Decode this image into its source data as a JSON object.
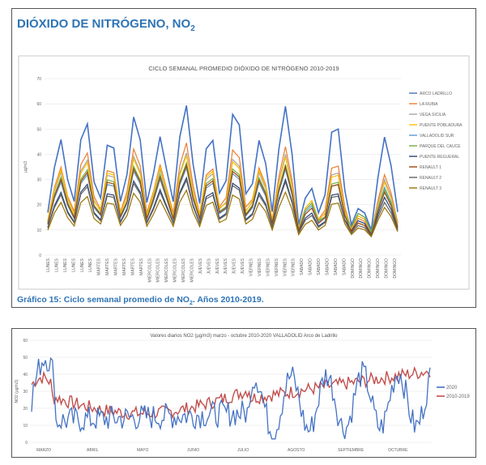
{
  "header": {
    "title": "DIÓXIDO DE NITRÓGENO, NO",
    "title_sub": "2"
  },
  "caption": {
    "text": "Gráfico 15: Ciclo semanal promedio de NO",
    "sub": "2",
    "suffix": ". Años 2010-2019."
  },
  "chart_data": [
    {
      "type": "line",
      "title": "CICLO SEMANAL PROMEDIO DIÓXIDO DE NITRÓGENO 2010-2019",
      "ylabel": "µg/m3",
      "ylim": [
        0,
        70
      ],
      "yticks": [
        0,
        10,
        20,
        30,
        40,
        50,
        60,
        70
      ],
      "n_points": 54,
      "x_tick_labels": [
        "LUNES",
        "LUNES",
        "LUNES",
        "LUNES",
        "LUNES",
        "LUNES",
        "MARTES",
        "MARTES",
        "MARTES",
        "MARTES",
        "MARTES",
        "MARTES",
        "MIERCOLES",
        "MIERCOLES",
        "MIERCOLES",
        "MIERCOLES",
        "MIERCOLES",
        "MIERCOLES",
        "JUEVES",
        "JUEVES",
        "JUEVES",
        "JUEVES",
        "JUEVES",
        "JUEVES",
        "VIERNES",
        "VIERNES",
        "VIERNES",
        "VIERNES",
        "VIERNES",
        "VIERNES",
        "SABADO",
        "SABADO",
        "SABADO",
        "SABADO",
        "SABADO",
        "SABADO",
        "DOMINGO",
        "DOMINGO",
        "DOMINGO",
        "DOMINGO",
        "DOMINGO",
        "DOMINGO"
      ],
      "series": [
        {
          "name": "ARCO LADRILLO",
          "color": "#4472c4",
          "peaks": [
            46,
            54,
            47,
            56,
            47,
            60,
            48,
            59,
            46,
            59,
            27,
            54,
            19,
            47
          ]
        },
        {
          "name": "LA RUBIA",
          "color": "#ed7d31",
          "peaks": [
            35,
            42,
            36,
            43,
            36,
            45,
            36,
            44,
            35,
            43,
            22,
            38,
            15,
            32
          ]
        },
        {
          "name": "VEGA SICILIA",
          "color": "#a5a5a5",
          "peaks": [
            33,
            39,
            34,
            40,
            34,
            41,
            34,
            40,
            33,
            40,
            21,
            35,
            16,
            30
          ]
        },
        {
          "name": "PUENTE POBLADURA",
          "color": "#ffc000",
          "peaks": [
            34,
            38,
            35,
            39,
            35,
            40,
            35,
            39,
            34,
            39,
            22,
            34,
            16,
            29
          ]
        },
        {
          "name": "VALLADOLID SUR",
          "color": "#5b9bd5",
          "peaks": [
            29,
            33,
            30,
            34,
            30,
            35,
            30,
            34,
            29,
            34,
            20,
            30,
            17,
            27
          ]
        },
        {
          "name": "PARQUE DEL CAUCE",
          "color": "#70ad47",
          "peaks": [
            31,
            35,
            32,
            36,
            32,
            37,
            32,
            36,
            31,
            36,
            21,
            31,
            17,
            26
          ]
        },
        {
          "name": "PUENTE REGUERAL",
          "color": "#264478",
          "peaks": [
            25,
            29,
            26,
            30,
            26,
            31,
            26,
            30,
            25,
            30,
            17,
            26,
            14,
            23
          ]
        },
        {
          "name": "RENAULT 1",
          "color": "#9e480e",
          "peaks": [
            30,
            34,
            31,
            35,
            31,
            36,
            31,
            35,
            30,
            35,
            19,
            30,
            13,
            25
          ]
        },
        {
          "name": "RENAULT 2",
          "color": "#636363",
          "peaks": [
            24,
            28,
            25,
            29,
            25,
            30,
            25,
            29,
            24,
            29,
            16,
            25,
            12,
            21
          ]
        },
        {
          "name": "RENAULT 3",
          "color": "#997300",
          "peaks": [
            21,
            24,
            22,
            25,
            22,
            26,
            22,
            25,
            21,
            25,
            14,
            22,
            11,
            19
          ]
        }
      ]
    },
    {
      "type": "line",
      "title": "Valores diarios NO2 (µg/m3) marzo - octubre 2010-2020 VALLADOLID Arco de Ladrillo",
      "ylabel": "NO2 (µg/m3)",
      "ylim": [
        0,
        60
      ],
      "yticks": [
        0,
        10,
        20,
        30,
        40,
        50,
        60
      ],
      "x_tick_labels": [
        "MARZO",
        "ABRIL",
        "MAYO",
        "JUNIO",
        "JULIO",
        "AGOSTO",
        "SEPTIEMBRE",
        "OCTUBRE"
      ],
      "series": [
        {
          "name": "2020",
          "color": "#4472c4"
        },
        {
          "name": "2010-2019",
          "color": "#c0504d"
        }
      ]
    }
  ]
}
